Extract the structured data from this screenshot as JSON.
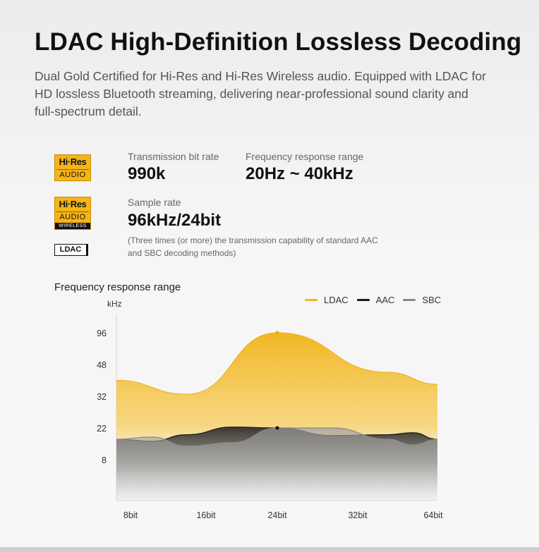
{
  "header": {
    "title": "LDAC High-Definition Lossless Decoding",
    "subtitle": "Dual Gold Certified for Hi-Res and Hi-Res Wireless audio. Equipped with LDAC for HD lossless Bluetooth streaming, delivering near-professional sound clarity and full-spectrum detail."
  },
  "badges": {
    "hires_audio": {
      "top": "Hi·Res",
      "bottom": "AUDIO"
    },
    "hires_wireless": {
      "top": "Hi·Res",
      "middle": "AUDIO",
      "bottom": "WIRELESS"
    },
    "ldac": "LDAC"
  },
  "specs": {
    "bitrate": {
      "label": "Transmission bit rate",
      "value": "990k"
    },
    "freq": {
      "label": "Frequency response range",
      "value": "20Hz ~ 40kHz"
    },
    "sample": {
      "label": "Sample rate",
      "value": "96kHz/24bit"
    },
    "note": "(Three times (or more) the transmission capability of standard AAC and SBC decoding methods)"
  },
  "colors": {
    "ldac": "#f3b61d",
    "aac": "#1a1a1a",
    "sbc": "#8a8a8a"
  },
  "chart_data": {
    "type": "area",
    "title": "Frequency response range",
    "ylabel": "kHz",
    "y_ticks": [
      "96",
      "48",
      "32",
      "22",
      "8"
    ],
    "categories": [
      "8bit",
      "16bit",
      "24bit",
      "32bit",
      "64bit"
    ],
    "legend": [
      "LDAC",
      "AAC",
      "SBC"
    ],
    "legend_position": "top-right",
    "series": [
      {
        "name": "LDAC",
        "values": [
          40,
          33,
          96,
          44,
          38
        ]
      },
      {
        "name": "AAC",
        "values": [
          17,
          19,
          22,
          19,
          17
        ]
      },
      {
        "name": "SBC",
        "values": [
          17,
          14,
          22,
          17,
          17
        ]
      }
    ]
  }
}
